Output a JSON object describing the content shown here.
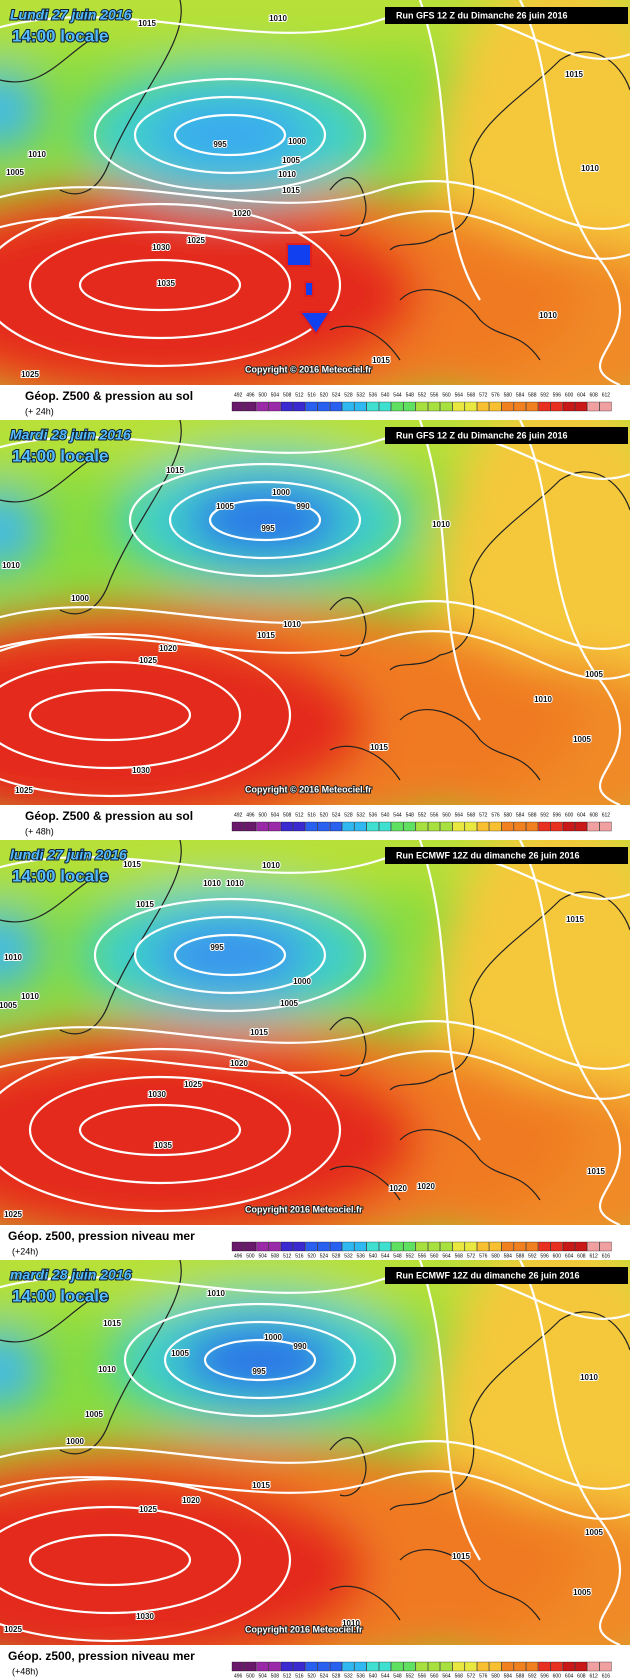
{
  "panels": [
    {
      "date": "Lundi 27 juin 2016",
      "time": "14:00 locale",
      "run": "Run GFS 12 Z du Dimanche 26 juin 2016",
      "copyright": "Copyright © 2016 Meteociel.fr",
      "caption": "Géop. Z500 & pression au sol",
      "step": "(+ 24h)",
      "isobars": [
        1015,
        1010,
        1015,
        1010,
        1005,
        995,
        1000,
        1005,
        1010,
        1015,
        1020,
        1025,
        1030,
        1035,
        1010,
        1010,
        1015,
        1025
      ],
      "scale": [
        492,
        496,
        500,
        504,
        508,
        512,
        516,
        520,
        524,
        528,
        532,
        536,
        540,
        544,
        548,
        552,
        556,
        560,
        564,
        568,
        572,
        576,
        580,
        584,
        588,
        592,
        596,
        600,
        604,
        608,
        612
      ]
    },
    {
      "date": "Mardi 28 juin 2016",
      "time": "14:00 locale",
      "run": "Run GFS 12 Z du Dimanche 26 juin 2016",
      "copyright": "Copyright © 2016 Meteociel.fr",
      "caption": "Géop. Z500 & pression au sol",
      "step": "(+ 48h)",
      "isobars": [
        1015,
        1000,
        990,
        1005,
        995,
        1010,
        1010,
        1000,
        1010,
        1015,
        1020,
        1025,
        1005,
        1010,
        1005,
        1015,
        1030,
        1025
      ],
      "scale": [
        492,
        496,
        500,
        504,
        508,
        512,
        516,
        520,
        524,
        528,
        532,
        536,
        540,
        544,
        548,
        552,
        556,
        560,
        564,
        568,
        572,
        576,
        580,
        584,
        588,
        592,
        596,
        600,
        604,
        608,
        612
      ]
    },
    {
      "date": "lundi 27 juin 2016",
      "time": "14:00 locale",
      "run": "Run ECMWF 12Z du dimanche 26 juin 2016",
      "copyright": "Copyright 2016 Meteociel.fr",
      "caption": "Géop. z500, pression niveau mer",
      "step": "(+24h)",
      "isobars": [
        1015,
        1010,
        1010,
        1010,
        1015,
        1015,
        1010,
        995,
        1010,
        1005,
        1000,
        1005,
        1015,
        1020,
        1025,
        1030,
        1035,
        1015,
        1020,
        1020,
        1025
      ],
      "scale": [
        496,
        500,
        504,
        508,
        512,
        516,
        520,
        524,
        528,
        532,
        536,
        540,
        544,
        548,
        552,
        556,
        560,
        564,
        568,
        572,
        576,
        580,
        584,
        588,
        592,
        596,
        600,
        604,
        608,
        612,
        616
      ]
    },
    {
      "date": "mardi 28 juin 2016",
      "time": "14:00 locale",
      "run": "Run ECMWF 12Z du dimanche 26 juin 2016",
      "copyright": "Copyright 2016 Meteociel.fr",
      "caption": "Géop. z500, pression niveau mer",
      "step": "(+48h)",
      "isobars": [
        1010,
        1015,
        1000,
        990,
        1005,
        995,
        1010,
        1010,
        1005,
        1000,
        1015,
        1020,
        1025,
        1005,
        1015,
        1005,
        1030,
        1010,
        1025
      ],
      "scale": [
        496,
        500,
        504,
        508,
        512,
        516,
        520,
        524,
        528,
        532,
        536,
        540,
        544,
        548,
        552,
        556,
        560,
        564,
        568,
        572,
        576,
        580,
        584,
        588,
        592,
        596,
        600,
        604,
        608,
        612,
        616
      ]
    }
  ]
}
